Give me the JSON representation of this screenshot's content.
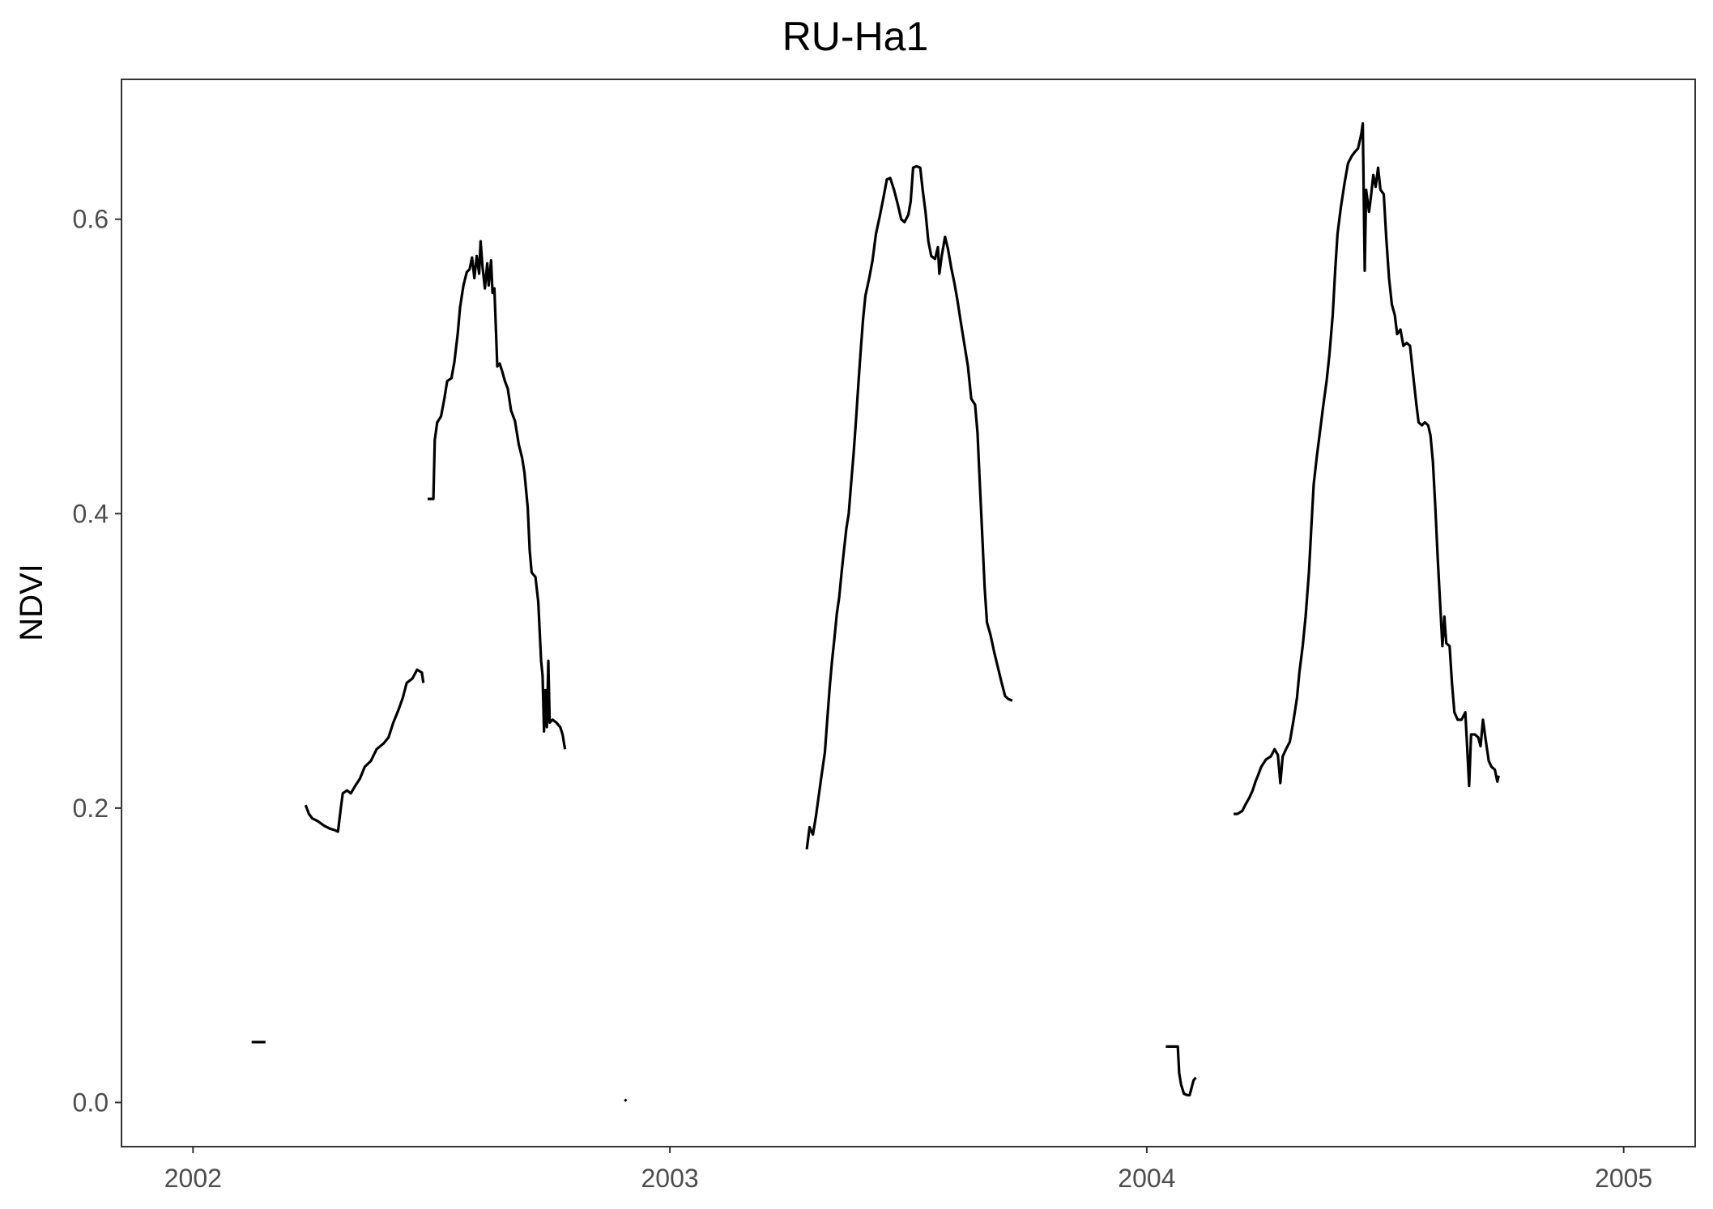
{
  "chart_data": {
    "type": "line",
    "title": "RU-Ha1",
    "xlabel": "",
    "ylabel": "NDVI",
    "xlim": [
      2001.85,
      2005.15
    ],
    "ylim": [
      -0.03,
      0.695
    ],
    "x_ticks": [
      2002,
      2003,
      2004,
      2005
    ],
    "x_tick_labels": [
      "2002",
      "2003",
      "2004",
      "2005"
    ],
    "y_ticks": [
      0.0,
      0.2,
      0.4,
      0.6
    ],
    "y_tick_labels": [
      "0.0",
      "0.2",
      "0.4",
      "0.6"
    ],
    "grid": false,
    "legend": "none",
    "line_color": "#000000",
    "series": [
      {
        "segments": [
          [
            [
              2002.123,
              0.041
            ],
            [
              2002.152,
              0.041
            ]
          ],
          [
            [
              2002.236,
              0.202
            ],
            [
              2002.243,
              0.196
            ],
            [
              2002.25,
              0.193
            ],
            [
              2002.262,
              0.191
            ],
            [
              2002.275,
              0.188
            ],
            [
              2002.287,
              0.186
            ],
            [
              2002.297,
              0.185
            ],
            [
              2002.304,
              0.184
            ],
            [
              2002.31,
              0.2
            ],
            [
              2002.314,
              0.21
            ],
            [
              2002.323,
              0.212
            ],
            [
              2002.331,
              0.21
            ],
            [
              2002.34,
              0.215
            ],
            [
              2002.35,
              0.22
            ],
            [
              2002.36,
              0.228
            ],
            [
              2002.373,
              0.232
            ],
            [
              2002.385,
              0.24
            ],
            [
              2002.4,
              0.244
            ],
            [
              2002.41,
              0.248
            ],
            [
              2002.42,
              0.258
            ],
            [
              2002.43,
              0.266
            ],
            [
              2002.44,
              0.275
            ],
            [
              2002.448,
              0.285
            ],
            [
              2002.46,
              0.288
            ],
            [
              2002.47,
              0.294
            ],
            [
              2002.48,
              0.292
            ],
            [
              2002.483,
              0.285
            ]
          ],
          [
            [
              2002.492,
              0.41
            ],
            [
              2002.504,
              0.41
            ],
            [
              2002.507,
              0.45
            ],
            [
              2002.512,
              0.462
            ],
            [
              2002.52,
              0.466
            ],
            [
              2002.527,
              0.478
            ],
            [
              2002.533,
              0.49
            ],
            [
              2002.542,
              0.492
            ],
            [
              2002.548,
              0.503
            ],
            [
              2002.555,
              0.522
            ],
            [
              2002.56,
              0.54
            ],
            [
              2002.567,
              0.555
            ],
            [
              2002.574,
              0.564
            ],
            [
              2002.58,
              0.566
            ],
            [
              2002.585,
              0.574
            ],
            [
              2002.59,
              0.56
            ],
            [
              2002.595,
              0.575
            ],
            [
              2002.6,
              0.563
            ],
            [
              2002.603,
              0.585
            ],
            [
              2002.607,
              0.568
            ],
            [
              2002.612,
              0.553
            ],
            [
              2002.617,
              0.57
            ],
            [
              2002.62,
              0.555
            ],
            [
              2002.625,
              0.572
            ],
            [
              2002.628,
              0.55
            ],
            [
              2002.632,
              0.553
            ],
            [
              2002.638,
              0.5
            ],
            [
              2002.643,
              0.502
            ],
            [
              2002.648,
              0.497
            ],
            [
              2002.654,
              0.49
            ],
            [
              2002.66,
              0.485
            ],
            [
              2002.667,
              0.47
            ],
            [
              2002.675,
              0.463
            ],
            [
              2002.683,
              0.447
            ],
            [
              2002.69,
              0.438
            ],
            [
              2002.695,
              0.428
            ],
            [
              2002.702,
              0.404
            ],
            [
              2002.706,
              0.375
            ],
            [
              2002.71,
              0.36
            ],
            [
              2002.718,
              0.357
            ],
            [
              2002.724,
              0.34
            ],
            [
              2002.73,
              0.3
            ],
            [
              2002.733,
              0.29
            ],
            [
              2002.736,
              0.252
            ],
            [
              2002.739,
              0.28
            ],
            [
              2002.742,
              0.255
            ],
            [
              2002.745,
              0.3
            ],
            [
              2002.748,
              0.258
            ],
            [
              2002.754,
              0.26
            ],
            [
              2002.762,
              0.258
            ],
            [
              2002.77,
              0.255
            ],
            [
              2002.775,
              0.25
            ],
            [
              2002.78,
              0.24
            ]
          ],
          [
            [
              2002.905,
              0.002
            ],
            [
              2002.909,
              0.001
            ]
          ],
          [
            [
              2003.287,
              0.172
            ],
            [
              2003.293,
              0.187
            ],
            [
              2003.3,
              0.182
            ],
            [
              2003.306,
              0.194
            ],
            [
              2003.312,
              0.208
            ],
            [
              2003.318,
              0.222
            ],
            [
              2003.325,
              0.238
            ],
            [
              2003.33,
              0.26
            ],
            [
              2003.335,
              0.282
            ],
            [
              2003.34,
              0.3
            ],
            [
              2003.345,
              0.315
            ],
            [
              2003.35,
              0.332
            ],
            [
              2003.355,
              0.343
            ],
            [
              2003.36,
              0.36
            ],
            [
              2003.365,
              0.375
            ],
            [
              2003.37,
              0.39
            ],
            [
              2003.375,
              0.4
            ],
            [
              2003.38,
              0.42
            ],
            [
              2003.385,
              0.44
            ],
            [
              2003.39,
              0.462
            ],
            [
              2003.395,
              0.487
            ],
            [
              2003.4,
              0.51
            ],
            [
              2003.405,
              0.532
            ],
            [
              2003.41,
              0.548
            ],
            [
              2003.418,
              0.56
            ],
            [
              2003.425,
              0.572
            ],
            [
              2003.432,
              0.59
            ],
            [
              2003.44,
              0.602
            ],
            [
              2003.448,
              0.615
            ],
            [
              2003.455,
              0.627
            ],
            [
              2003.462,
              0.628
            ],
            [
              2003.47,
              0.62
            ],
            [
              2003.478,
              0.61
            ],
            [
              2003.485,
              0.6
            ],
            [
              2003.492,
              0.598
            ],
            [
              2003.5,
              0.603
            ],
            [
              2003.505,
              0.612
            ],
            [
              2003.51,
              0.635
            ],
            [
              2003.517,
              0.636
            ],
            [
              2003.525,
              0.635
            ],
            [
              2003.53,
              0.62
            ],
            [
              2003.536,
              0.605
            ],
            [
              2003.542,
              0.585
            ],
            [
              2003.548,
              0.575
            ],
            [
              2003.556,
              0.573
            ],
            [
              2003.562,
              0.581
            ],
            [
              2003.565,
              0.563
            ],
            [
              2003.57,
              0.575
            ],
            [
              2003.577,
              0.588
            ],
            [
              2003.583,
              0.58
            ],
            [
              2003.59,
              0.567
            ],
            [
              2003.597,
              0.556
            ],
            [
              2003.603,
              0.545
            ],
            [
              2003.61,
              0.53
            ],
            [
              2003.617,
              0.516
            ],
            [
              2003.625,
              0.5
            ],
            [
              2003.632,
              0.478
            ],
            [
              2003.64,
              0.474
            ],
            [
              2003.645,
              0.455
            ],
            [
              2003.65,
              0.42
            ],
            [
              2003.655,
              0.385
            ],
            [
              2003.66,
              0.35
            ],
            [
              2003.665,
              0.326
            ],
            [
              2003.672,
              0.318
            ],
            [
              2003.68,
              0.306
            ],
            [
              2003.686,
              0.298
            ],
            [
              2003.695,
              0.286
            ],
            [
              2003.703,
              0.276
            ],
            [
              2003.71,
              0.274
            ],
            [
              2003.718,
              0.273
            ]
          ],
          [
            [
              2004.04,
              0.038
            ],
            [
              2004.065,
              0.038
            ],
            [
              2004.068,
              0.02
            ],
            [
              2004.072,
              0.012
            ],
            [
              2004.078,
              0.006
            ],
            [
              2004.085,
              0.005
            ],
            [
              2004.09,
              0.005
            ],
            [
              2004.094,
              0.01
            ],
            [
              2004.098,
              0.015
            ],
            [
              2004.103,
              0.017
            ]
          ],
          [
            [
              2004.182,
              0.196
            ],
            [
              2004.19,
              0.196
            ],
            [
              2004.2,
              0.198
            ],
            [
              2004.208,
              0.203
            ],
            [
              2004.215,
              0.207
            ],
            [
              2004.222,
              0.212
            ],
            [
              2004.228,
              0.218
            ],
            [
              2004.233,
              0.222
            ],
            [
              2004.24,
              0.228
            ],
            [
              2004.25,
              0.233
            ],
            [
              2004.26,
              0.235
            ],
            [
              2004.268,
              0.24
            ],
            [
              2004.275,
              0.236
            ],
            [
              2004.28,
              0.217
            ],
            [
              2004.285,
              0.235
            ],
            [
              2004.292,
              0.24
            ],
            [
              2004.3,
              0.245
            ],
            [
              2004.308,
              0.26
            ],
            [
              2004.315,
              0.275
            ],
            [
              2004.32,
              0.292
            ],
            [
              2004.327,
              0.31
            ],
            [
              2004.333,
              0.33
            ],
            [
              2004.34,
              0.36
            ],
            [
              2004.345,
              0.39
            ],
            [
              2004.35,
              0.42
            ],
            [
              2004.357,
              0.44
            ],
            [
              2004.363,
              0.455
            ],
            [
              2004.37,
              0.473
            ],
            [
              2004.377,
              0.49
            ],
            [
              2004.383,
              0.508
            ],
            [
              2004.39,
              0.535
            ],
            [
              2004.395,
              0.565
            ],
            [
              2004.4,
              0.59
            ],
            [
              2004.407,
              0.608
            ],
            [
              2004.415,
              0.625
            ],
            [
              2004.422,
              0.638
            ],
            [
              2004.43,
              0.643
            ],
            [
              2004.437,
              0.646
            ],
            [
              2004.443,
              0.648
            ],
            [
              2004.45,
              0.658
            ],
            [
              2004.453,
              0.665
            ],
            [
              2004.457,
              0.565
            ],
            [
              2004.46,
              0.62
            ],
            [
              2004.466,
              0.605
            ],
            [
              2004.47,
              0.615
            ],
            [
              2004.475,
              0.63
            ],
            [
              2004.48,
              0.622
            ],
            [
              2004.485,
              0.635
            ],
            [
              2004.49,
              0.62
            ],
            [
              2004.497,
              0.617
            ],
            [
              2004.502,
              0.588
            ],
            [
              2004.508,
              0.56
            ],
            [
              2004.514,
              0.542
            ],
            [
              2004.52,
              0.535
            ],
            [
              2004.525,
              0.522
            ],
            [
              2004.532,
              0.525
            ],
            [
              2004.538,
              0.514
            ],
            [
              2004.545,
              0.516
            ],
            [
              2004.552,
              0.514
            ],
            [
              2004.56,
              0.49
            ],
            [
              2004.565,
              0.475
            ],
            [
              2004.57,
              0.462
            ],
            [
              2004.577,
              0.46
            ],
            [
              2004.583,
              0.462
            ],
            [
              2004.59,
              0.46
            ],
            [
              2004.595,
              0.453
            ],
            [
              2004.6,
              0.435
            ],
            [
              2004.605,
              0.405
            ],
            [
              2004.61,
              0.37
            ],
            [
              2004.615,
              0.34
            ],
            [
              2004.62,
              0.31
            ],
            [
              2004.624,
              0.33
            ],
            [
              2004.628,
              0.312
            ],
            [
              2004.635,
              0.31
            ],
            [
              2004.64,
              0.285
            ],
            [
              2004.645,
              0.265
            ],
            [
              2004.652,
              0.26
            ],
            [
              2004.66,
              0.26
            ],
            [
              2004.668,
              0.265
            ],
            [
              2004.672,
              0.24
            ],
            [
              2004.676,
              0.215
            ],
            [
              2004.68,
              0.25
            ],
            [
              2004.688,
              0.25
            ],
            [
              2004.695,
              0.248
            ],
            [
              2004.7,
              0.242
            ],
            [
              2004.705,
              0.26
            ],
            [
              2004.71,
              0.248
            ],
            [
              2004.717,
              0.232
            ],
            [
              2004.723,
              0.228
            ],
            [
              2004.73,
              0.226
            ],
            [
              2004.735,
              0.218
            ],
            [
              2004.738,
              0.222
            ]
          ]
        ]
      }
    ]
  }
}
